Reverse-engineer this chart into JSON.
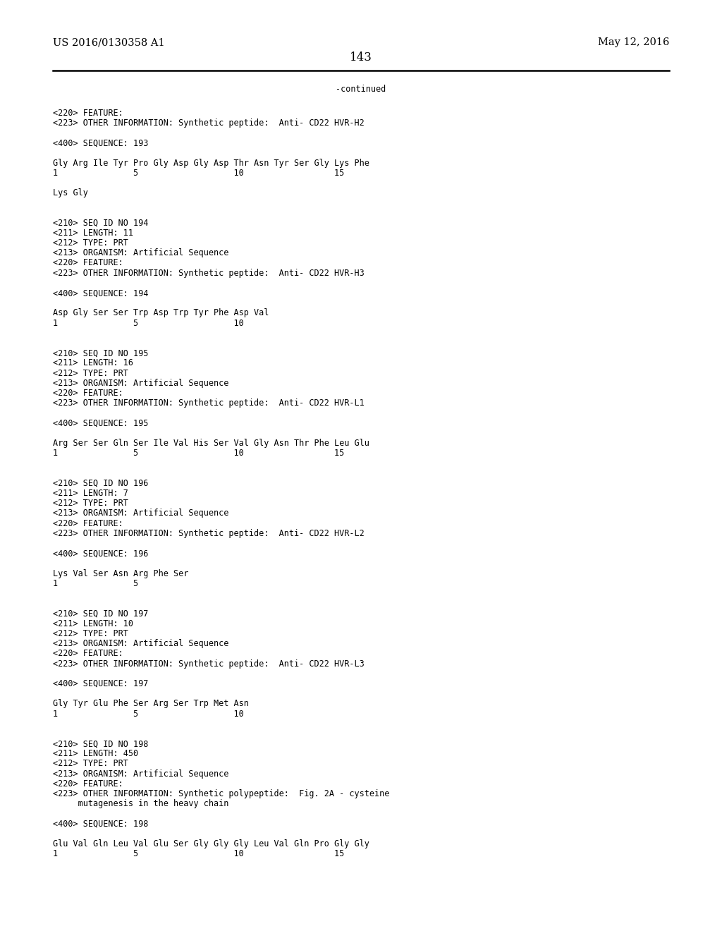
{
  "bg_color": "#ffffff",
  "header_left": "US 2016/0130358 A1",
  "header_right": "May 12, 2016",
  "page_number": "143",
  "continued_label": "-continued",
  "header_font_size": 10.5,
  "page_num_font_size": 12,
  "mono_font_size": 8.5,
  "lines": [
    "<220> FEATURE:",
    "<223> OTHER INFORMATION: Synthetic peptide:  Anti- CD22 HVR-H2",
    "",
    "<400> SEQUENCE: 193",
    "",
    "Gly Arg Ile Tyr Pro Gly Asp Gly Asp Thr Asn Tyr Ser Gly Lys Phe",
    "1               5                   10                  15",
    "",
    "Lys Gly",
    "",
    "",
    "<210> SEQ ID NO 194",
    "<211> LENGTH: 11",
    "<212> TYPE: PRT",
    "<213> ORGANISM: Artificial Sequence",
    "<220> FEATURE:",
    "<223> OTHER INFORMATION: Synthetic peptide:  Anti- CD22 HVR-H3",
    "",
    "<400> SEQUENCE: 194",
    "",
    "Asp Gly Ser Ser Trp Asp Trp Tyr Phe Asp Val",
    "1               5                   10",
    "",
    "",
    "<210> SEQ ID NO 195",
    "<211> LENGTH: 16",
    "<212> TYPE: PRT",
    "<213> ORGANISM: Artificial Sequence",
    "<220> FEATURE:",
    "<223> OTHER INFORMATION: Synthetic peptide:  Anti- CD22 HVR-L1",
    "",
    "<400> SEQUENCE: 195",
    "",
    "Arg Ser Ser Gln Ser Ile Val His Ser Val Gly Asn Thr Phe Leu Glu",
    "1               5                   10                  15",
    "",
    "",
    "<210> SEQ ID NO 196",
    "<211> LENGTH: 7",
    "<212> TYPE: PRT",
    "<213> ORGANISM: Artificial Sequence",
    "<220> FEATURE:",
    "<223> OTHER INFORMATION: Synthetic peptide:  Anti- CD22 HVR-L2",
    "",
    "<400> SEQUENCE: 196",
    "",
    "Lys Val Ser Asn Arg Phe Ser",
    "1               5",
    "",
    "",
    "<210> SEQ ID NO 197",
    "<211> LENGTH: 10",
    "<212> TYPE: PRT",
    "<213> ORGANISM: Artificial Sequence",
    "<220> FEATURE:",
    "<223> OTHER INFORMATION: Synthetic peptide:  Anti- CD22 HVR-L3",
    "",
    "<400> SEQUENCE: 197",
    "",
    "Gly Tyr Glu Phe Ser Arg Ser Trp Met Asn",
    "1               5                   10",
    "",
    "",
    "<210> SEQ ID NO 198",
    "<211> LENGTH: 450",
    "<212> TYPE: PRT",
    "<213> ORGANISM: Artificial Sequence",
    "<220> FEATURE:",
    "<223> OTHER INFORMATION: Synthetic polypeptide:  Fig. 2A - cysteine",
    "     mutagenesis in the heavy chain",
    "",
    "<400> SEQUENCE: 198",
    "",
    "Glu Val Gln Leu Val Glu Ser Gly Gly Gly Leu Val Gln Pro Gly Gly",
    "1               5                   10                  15"
  ]
}
